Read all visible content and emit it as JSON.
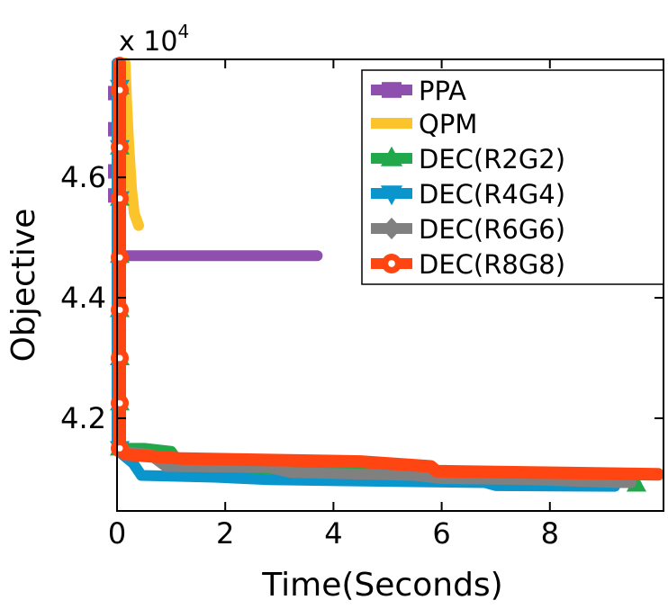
{
  "chart_data": {
    "type": "line",
    "title": "",
    "xlabel": "Time(Seconds)",
    "ylabel": "Objective",
    "y_multiplier_label": "x 10",
    "y_multiplier_exp": "4",
    "xlim": [
      0,
      10.1
    ],
    "ylim": [
      4.046,
      4.796
    ],
    "xticks": [
      0,
      2,
      4,
      6,
      8
    ],
    "xtick_labels": [
      "0",
      "2",
      "4",
      "6",
      "8"
    ],
    "yticks": [
      4.2,
      4.4,
      4.6
    ],
    "ytick_labels": [
      "4.2",
      "4.4",
      "4.6"
    ],
    "grid": false,
    "legend_position": "top-right",
    "series": [
      {
        "name": "PPA",
        "color": "#8e4fae",
        "marker": "square",
        "points": [
          [
            0,
            4.79
          ],
          [
            0,
            4.68
          ],
          [
            0.03,
            4.6
          ],
          [
            0.05,
            4.47
          ],
          [
            3.7,
            4.47
          ]
        ],
        "markers": [
          [
            0,
            4.74
          ],
          [
            0,
            4.68
          ],
          [
            0,
            4.61
          ],
          [
            0,
            4.57
          ]
        ]
      },
      {
        "name": "QPM",
        "color": "#fcc42c",
        "marker": "star",
        "points": [
          [
            0.15,
            4.79
          ],
          [
            0.18,
            4.72
          ],
          [
            0.22,
            4.65
          ],
          [
            0.27,
            4.58
          ],
          [
            0.32,
            4.54
          ],
          [
            0.4,
            4.52
          ]
        ],
        "markers": []
      },
      {
        "name": "DEC(R2G2)",
        "color": "#20a84a",
        "marker": "triangle-up",
        "points": [
          [
            0.05,
            4.79
          ],
          [
            0.05,
            4.15
          ],
          [
            0.5,
            4.15
          ],
          [
            1.0,
            4.145
          ],
          [
            1.2,
            4.12
          ],
          [
            3.0,
            4.115
          ],
          [
            6.0,
            4.105
          ],
          [
            7.0,
            4.1
          ],
          [
            9.5,
            4.095
          ],
          [
            9.6,
            4.09
          ]
        ],
        "markers": [
          [
            0.05,
            4.75
          ],
          [
            0.05,
            4.65
          ],
          [
            0.05,
            4.565
          ],
          [
            0.05,
            4.47
          ],
          [
            0.05,
            4.38
          ],
          [
            0.05,
            4.3
          ],
          [
            0.05,
            4.225
          ],
          [
            0.05,
            4.15
          ],
          [
            9.6,
            4.09
          ]
        ]
      },
      {
        "name": "DEC(R4G4)",
        "color": "#0a96cc",
        "marker": "triangle-down",
        "points": [
          [
            0,
            4.79
          ],
          [
            0,
            4.155
          ],
          [
            0.1,
            4.14
          ],
          [
            0.3,
            4.125
          ],
          [
            0.45,
            4.105
          ],
          [
            1.8,
            4.102
          ],
          [
            2.8,
            4.098
          ],
          [
            4.2,
            4.096
          ],
          [
            6.8,
            4.093
          ],
          [
            7.0,
            4.088
          ],
          [
            9.2,
            4.087
          ]
        ],
        "markers": [
          [
            0.05,
            4.75
          ],
          [
            0.05,
            4.65
          ],
          [
            0.05,
            4.565
          ],
          [
            0.05,
            4.15
          ]
        ]
      },
      {
        "name": "DEC(R6G6)",
        "color": "#808080",
        "marker": "diamond",
        "points": [
          [
            0.05,
            4.79
          ],
          [
            0.05,
            4.145
          ],
          [
            0.6,
            4.14
          ],
          [
            0.9,
            4.12
          ],
          [
            2.8,
            4.118
          ],
          [
            3.2,
            4.11
          ],
          [
            5.5,
            4.105
          ],
          [
            6.0,
            4.1
          ],
          [
            7.6,
            4.098
          ],
          [
            9.3,
            4.093
          ],
          [
            9.5,
            4.093
          ]
        ],
        "markers": []
      },
      {
        "name": "DEC(R8G8)",
        "color": "#ff4612",
        "marker": "circle",
        "points": [
          [
            0.05,
            4.79
          ],
          [
            0.05,
            4.15
          ],
          [
            0.15,
            4.14
          ],
          [
            1.2,
            4.133
          ],
          [
            4.5,
            4.128
          ],
          [
            5.8,
            4.12
          ],
          [
            5.9,
            4.112
          ],
          [
            10.0,
            4.107
          ]
        ],
        "markers": [
          [
            0.05,
            4.745
          ],
          [
            0.05,
            4.65
          ],
          [
            0.05,
            4.565
          ],
          [
            0.05,
            4.467
          ],
          [
            0.05,
            4.38
          ],
          [
            0.05,
            4.3
          ],
          [
            0.05,
            4.225
          ],
          [
            0.05,
            4.15
          ]
        ]
      }
    ]
  }
}
